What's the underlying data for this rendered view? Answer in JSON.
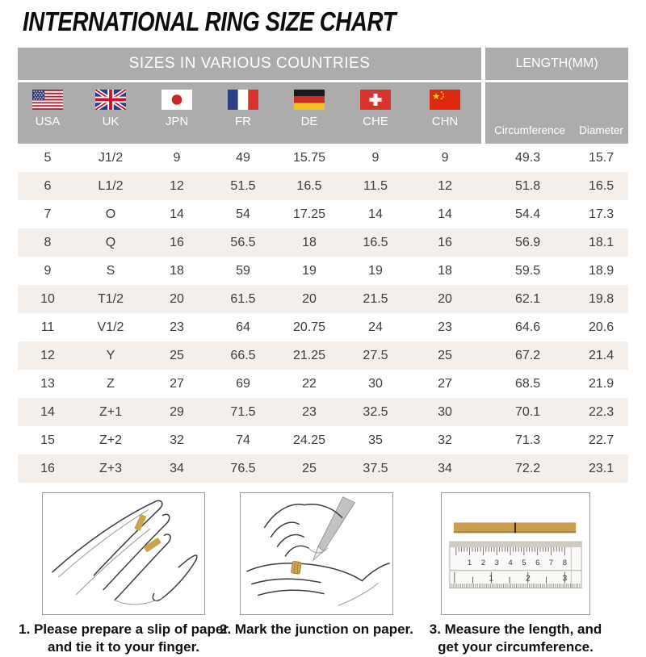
{
  "page": {
    "title": "INTERNATIONAL RING SIZE CHART"
  },
  "table": {
    "group_headers": {
      "countries": "SIZES IN VARIOUS COUNTRIES",
      "length": "LENGTH(MM)"
    },
    "columns": [
      {
        "code": "USA"
      },
      {
        "code": "UK"
      },
      {
        "code": "JPN"
      },
      {
        "code": "FR"
      },
      {
        "code": "DE"
      },
      {
        "code": "CHE"
      },
      {
        "code": "CHN"
      }
    ],
    "length_columns": {
      "circumference": "Circumference",
      "diameter": "Diameter"
    },
    "rows": [
      [
        "5",
        "J1/2",
        "9",
        "49",
        "15.75",
        "9",
        "9",
        "49.3",
        "15.7"
      ],
      [
        "6",
        "L1/2",
        "12",
        "51.5",
        "16.5",
        "11.5",
        "12",
        "51.8",
        "16.5"
      ],
      [
        "7",
        "O",
        "14",
        "54",
        "17.25",
        "14",
        "14",
        "54.4",
        "17.3"
      ],
      [
        "8",
        "Q",
        "16",
        "56.5",
        "18",
        "16.5",
        "16",
        "56.9",
        "18.1"
      ],
      [
        "9",
        "S",
        "18",
        "59",
        "19",
        "19",
        "18",
        "59.5",
        "18.9"
      ],
      [
        "10",
        "T1/2",
        "20",
        "61.5",
        "20",
        "21.5",
        "20",
        "62.1",
        "19.8"
      ],
      [
        "11",
        "V1/2",
        "23",
        "64",
        "20.75",
        "24",
        "23",
        "64.6",
        "20.6"
      ],
      [
        "12",
        "Y",
        "25",
        "66.5",
        "21.25",
        "27.5",
        "25",
        "67.2",
        "21.4"
      ],
      [
        "13",
        "Z",
        "27",
        "69",
        "22",
        "30",
        "27",
        "68.5",
        "21.9"
      ],
      [
        "14",
        "Z+1",
        "29",
        "71.5",
        "23",
        "32.5",
        "30",
        "70.1",
        "22.3"
      ],
      [
        "15",
        "Z+2",
        "32",
        "74",
        "24.25",
        "35",
        "32",
        "71.3",
        "22.7"
      ],
      [
        "16",
        "Z+3",
        "34",
        "76.5",
        "25",
        "37.5",
        "34",
        "72.2",
        "23.1"
      ]
    ]
  },
  "instructions": {
    "steps": [
      {
        "line1": "1. Please prepare a slip of paper",
        "line2": "and tie it to your finger."
      },
      {
        "line1": "2. Mark the junction on paper.",
        "line2": ""
      },
      {
        "line1": "3. Measure the length, and",
        "line2": "get your circumference."
      }
    ],
    "ruler": {
      "cm_labels": [
        "1",
        "2",
        "3",
        "4",
        "5",
        "6",
        "7",
        "8"
      ],
      "inch_labels": [
        "1",
        "2",
        "3"
      ]
    }
  },
  "colors": {
    "header_gray": "#acacac",
    "row_stripe": "#f4efeb",
    "paper_tan": "#c9a04f",
    "text_dark": "#3d3d3d"
  }
}
